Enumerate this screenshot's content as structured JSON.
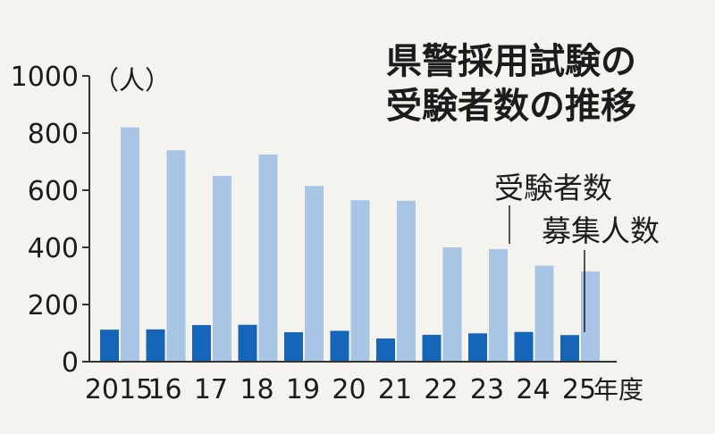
{
  "chart_data": {
    "type": "bar",
    "title_lines": [
      "県警採用試験の",
      "受験者数の推移"
    ],
    "ylabel": "（人）",
    "xlabel_suffix": "年度",
    "categories": [
      "2015",
      "16",
      "17",
      "18",
      "19",
      "20",
      "21",
      "22",
      "23",
      "24",
      "25"
    ],
    "ylim": [
      0,
      1000
    ],
    "yticks": [
      0,
      200,
      400,
      600,
      800,
      1000
    ],
    "series": [
      {
        "name": "募集人数",
        "color": "#1565b8",
        "values": [
          112,
          113,
          128,
          129,
          103,
          108,
          81,
          94,
          99,
          104,
          93
        ]
      },
      {
        "name": "受験者数",
        "color": "#a8c5e6",
        "values": [
          820,
          740,
          650,
          725,
          615,
          565,
          563,
          400,
          394,
          336,
          316
        ]
      }
    ],
    "annotations": [
      "受験者数",
      "募集人数"
    ],
    "grid": false
  }
}
